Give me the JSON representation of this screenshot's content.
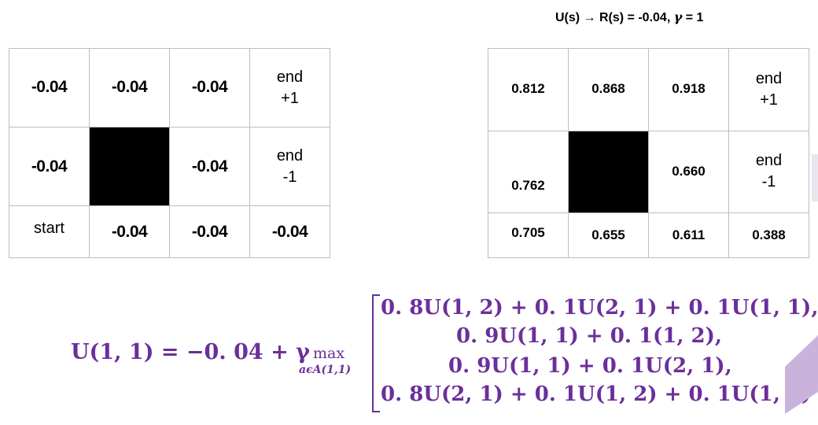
{
  "caption": {
    "prefix": "U(s) → R(s) = -0.04, ",
    "gamma": "γ",
    "suffix": " = 1"
  },
  "left_grid": {
    "rows": [
      [
        "-0.04",
        "-0.04",
        "-0.04",
        "end +1"
      ],
      [
        "-0.04",
        "",
        "-0.04",
        "end -1"
      ],
      [
        "start",
        "-0.04",
        "-0.04",
        "-0.04"
      ]
    ],
    "end_label": "end",
    "plus_one": "+1",
    "minus_one": "-1"
  },
  "right_grid": {
    "rows": [
      [
        "0.812",
        "0.868",
        "0.918",
        "end +1"
      ],
      [
        "0.762",
        "",
        "0.660",
        "end -1"
      ],
      [
        "0.705",
        "0.655",
        "0.611",
        "0.388"
      ]
    ]
  },
  "equation": {
    "lhs": "U(1, 1) = −0. 04 + γ",
    "max": "max",
    "subscript": "aϵA(1,1)",
    "lines": [
      "0. 8U(1, 2) + 0. 1U(2, 1) + 0. 1U(1, 1),",
      "0. 9U(1, 1) + 0. 1(1, 2),",
      "0. 9U(1, 1) + 0. 1U(2, 1),",
      "0. 8U(2, 1) + 0. 1U(1, 2) + 0. 1U(1, 1)"
    ]
  },
  "colors": {
    "equation": "#6b2f9a",
    "wall": "#000000",
    "grid_border": "#bdbdbd",
    "accent_decor": "#c9b3dc"
  }
}
